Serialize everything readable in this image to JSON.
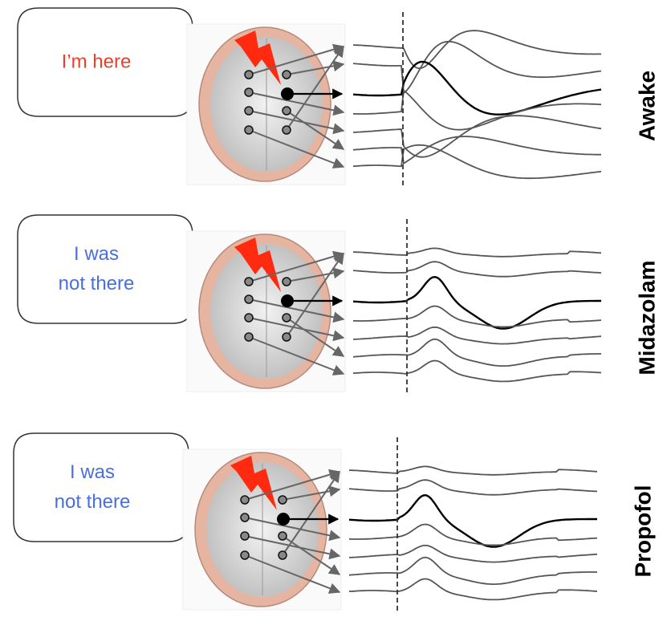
{
  "panels": [
    {
      "bubble_lines": [
        "I’m here"
      ],
      "condition": "Awake"
    },
    {
      "bubble_lines": [
        "I was",
        "not there"
      ],
      "condition": "Midazolam"
    },
    {
      "bubble_lines": [
        "I was",
        "not there"
      ],
      "condition": "Propofol"
    }
  ]
}
